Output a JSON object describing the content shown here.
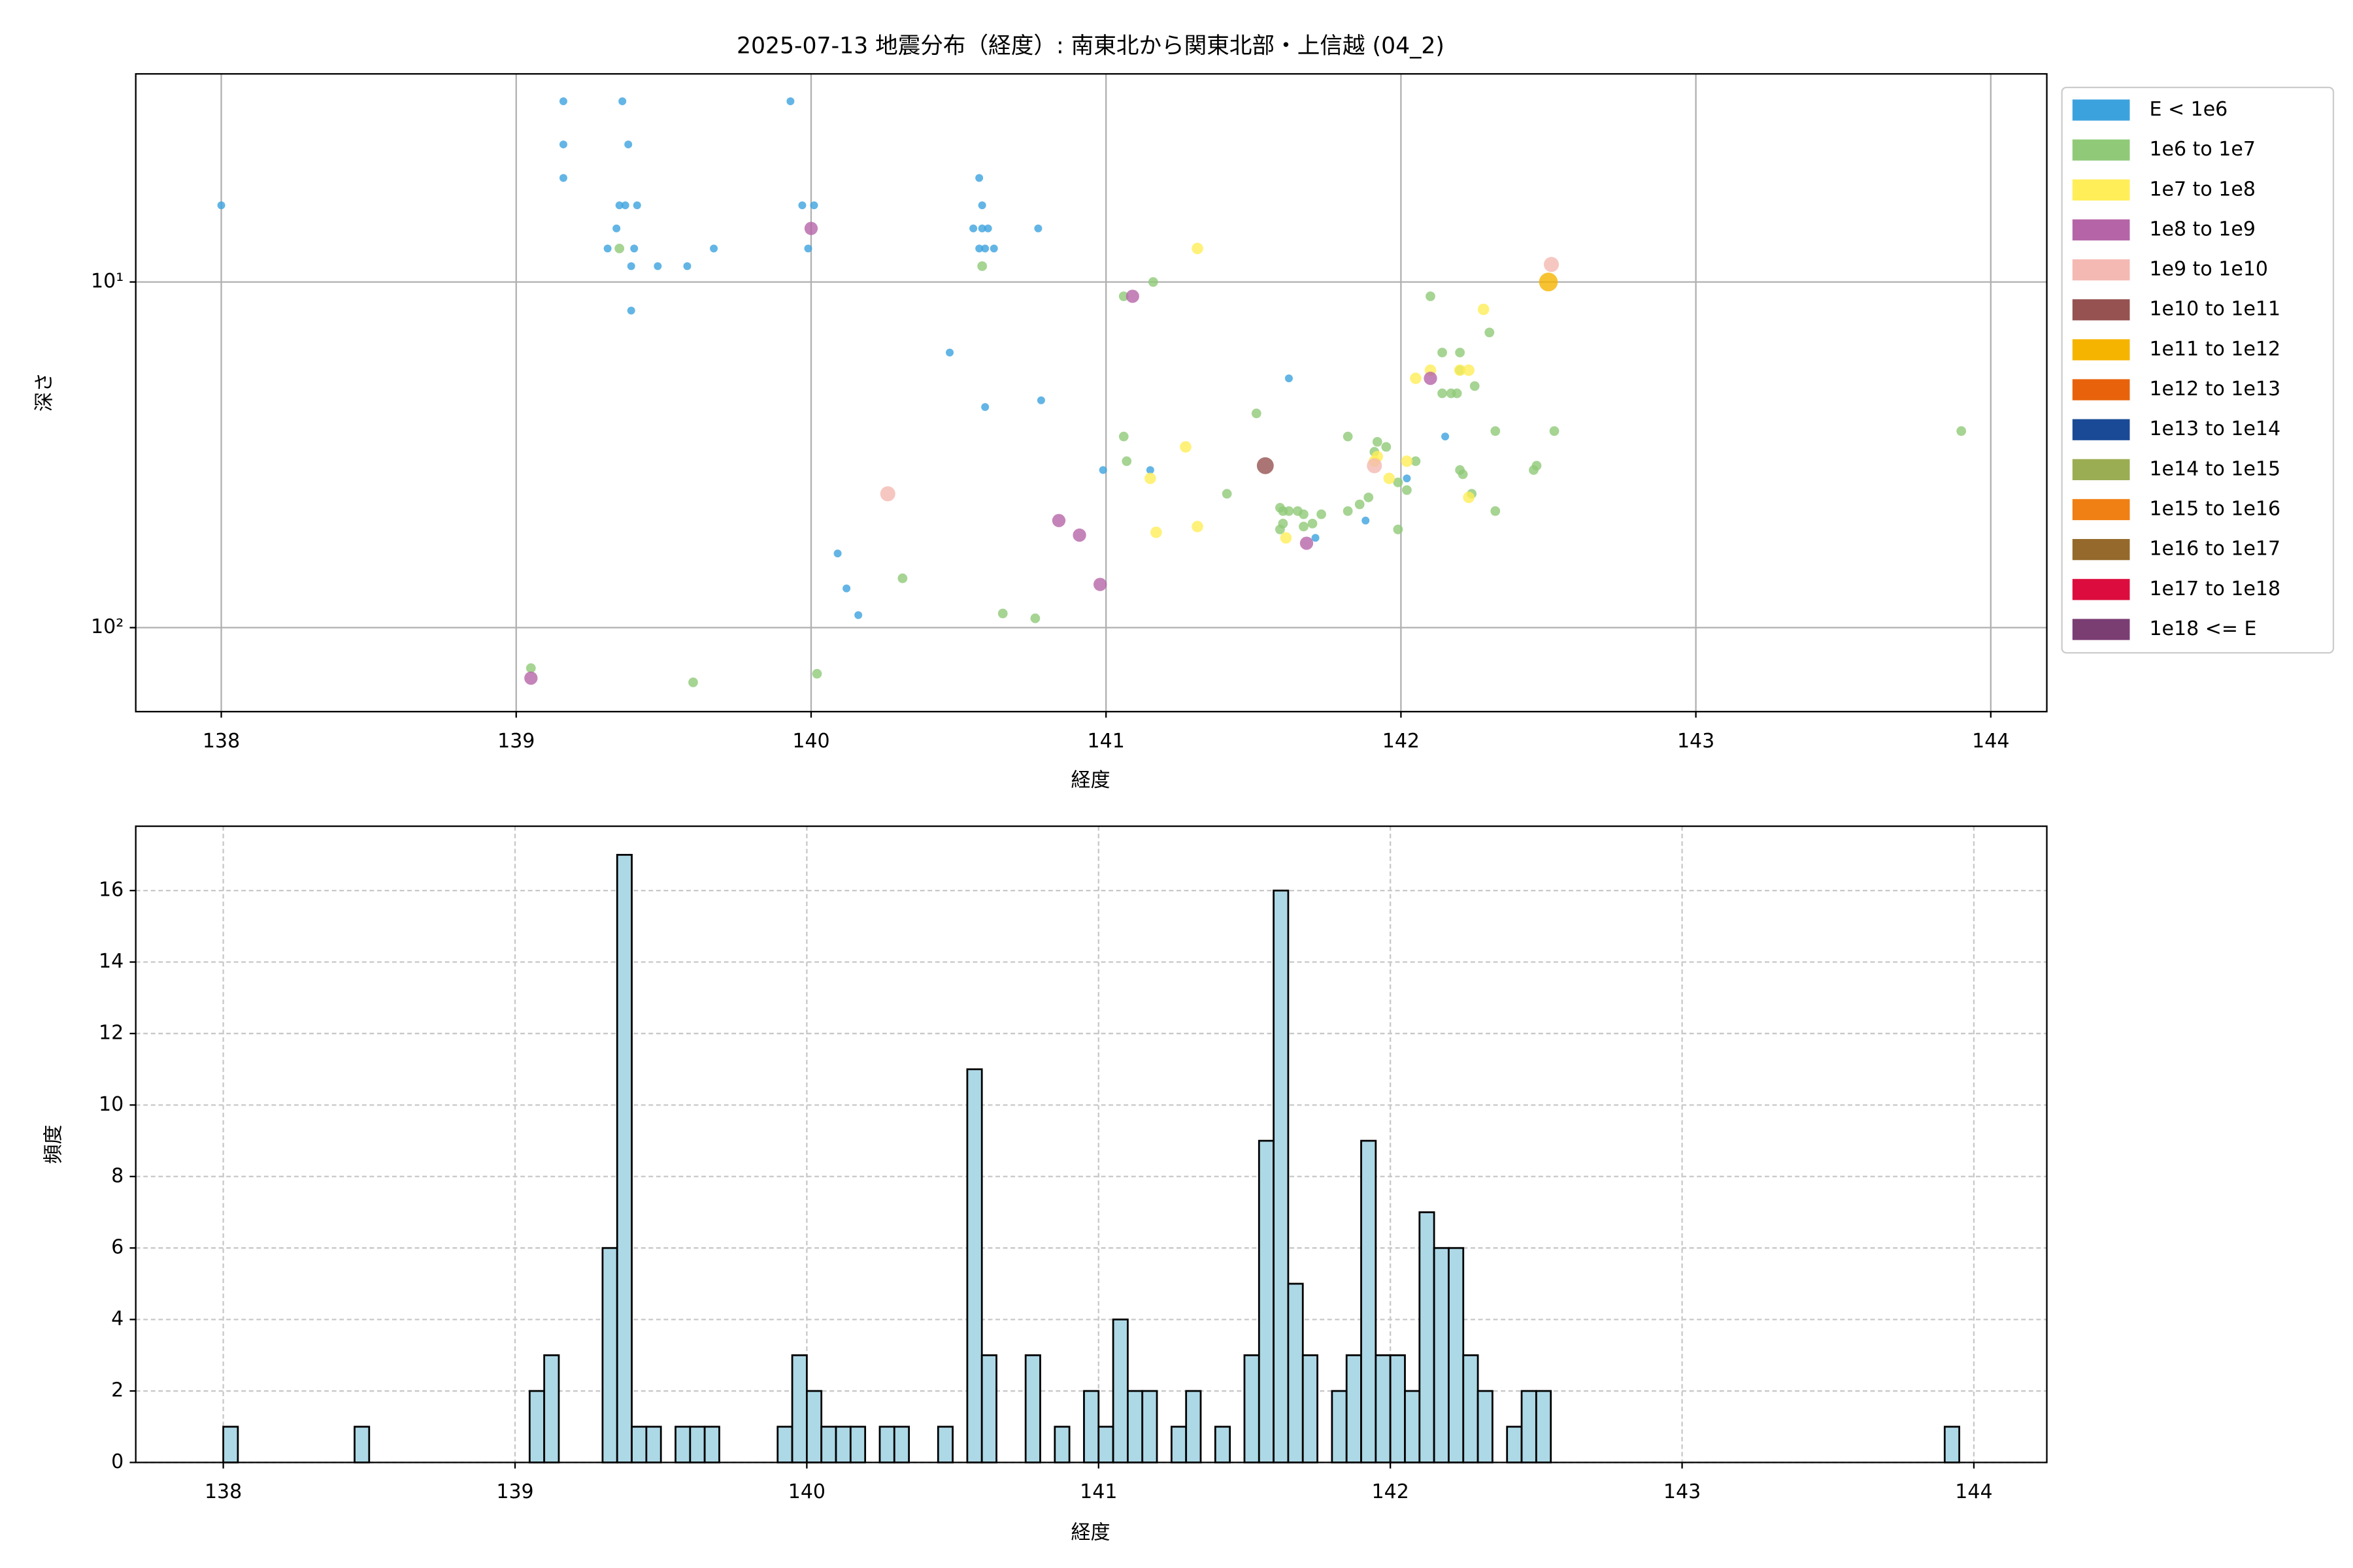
{
  "chart_data": [
    {
      "type": "scatter",
      "title": "2025-07-13 地震分布（経度）: 南東北から関東北部・上信越 (04_2)",
      "x_label": "経度",
      "y_label": "深さ",
      "xlim": [
        137.71,
        144.19
      ],
      "xticks": [
        138,
        139,
        140,
        141,
        142,
        143,
        144
      ],
      "ylim": [
        175,
        2.5
      ],
      "log_y": true,
      "yticks": [
        {
          "value": 10,
          "label": "10¹"
        },
        {
          "value": 100,
          "label": "10²"
        }
      ],
      "grid": true,
      "legend": "outside upper right",
      "series": [
        {
          "name": "E < 1e6",
          "color": "#3ca2de",
          "x": [
            138.0,
            139.16,
            139.16,
            139.16,
            139.36,
            139.38,
            139.35,
            139.37,
            139.41,
            139.34,
            139.31,
            139.4,
            139.39,
            139.48,
            139.58,
            139.67,
            139.39,
            139.93,
            139.97,
            140.01,
            139.99,
            140.57,
            140.58,
            140.55,
            140.58,
            140.6,
            140.57,
            140.59,
            140.62,
            140.77,
            140.47,
            140.59,
            140.78,
            140.09,
            140.12,
            140.16,
            140.99,
            141.15,
            141.62,
            142.15,
            142.02,
            141.88,
            141.71
          ],
          "values": [
            6,
            3,
            4,
            5,
            3,
            4,
            6,
            6,
            6,
            7,
            8,
            8,
            9,
            9,
            9,
            8,
            12.1,
            3,
            6,
            6,
            8,
            5,
            6,
            7,
            7,
            7,
            8,
            8,
            8,
            7,
            16,
            23,
            22,
            61,
            77,
            92,
            35,
            35,
            19,
            28,
            37,
            49,
            55
          ]
        },
        {
          "name": "1e6 to 1e7",
          "color": "#90c978",
          "x": [
            139.05,
            139.6,
            140.02,
            140.31,
            140.65,
            140.76,
            139.35,
            140.58,
            141.06,
            141.16,
            141.06,
            141.07,
            141.41,
            141.51,
            141.59,
            141.6,
            141.62,
            141.65,
            141.67,
            141.6,
            141.59,
            141.67,
            141.73,
            141.7,
            141.82,
            141.82,
            141.86,
            141.89,
            141.91,
            141.92,
            141.95,
            141.99,
            141.99,
            142.02,
            142.05,
            142.1,
            142.14,
            142.14,
            142.17,
            142.19,
            142.2,
            142.2,
            142.21,
            142.2,
            142.25,
            142.24,
            142.3,
            142.32,
            142.32,
            142.45,
            142.46,
            142.52,
            143.9
          ],
          "values": [
            131,
            144,
            136,
            72,
            91,
            94,
            8,
            9,
            11,
            10,
            28,
            33,
            41,
            24,
            45,
            46,
            46,
            46,
            47,
            50,
            52,
            51,
            47,
            50,
            28,
            46,
            44,
            42,
            31,
            29,
            30,
            38,
            52,
            40,
            33,
            11,
            16,
            21,
            21,
            21,
            16,
            35,
            36,
            18,
            20,
            41,
            14,
            27,
            46,
            35,
            34,
            27,
            27
          ]
        },
        {
          "name": "1e7 to 1e8",
          "color": "#ffee58",
          "x": [
            141.31,
            141.15,
            141.27,
            141.17,
            141.31,
            141.61,
            141.91,
            141.92,
            141.96,
            142.02,
            142.05,
            142.1,
            142.2,
            142.23,
            142.28,
            142.23
          ],
          "values": [
            8,
            37,
            30,
            53,
            51,
            55,
            33,
            32,
            37,
            33,
            19,
            18,
            18,
            18,
            12,
            42
          ]
        },
        {
          "name": "1e8 to 1e9",
          "color": "#b565a7",
          "x": [
            139.05,
            140.0,
            141.09,
            140.84,
            140.91,
            140.98,
            141.68,
            142.1
          ],
          "values": [
            140,
            7,
            11,
            49,
            54,
            75,
            57,
            19
          ]
        },
        {
          "name": "1e9 to 1e10",
          "color": "#f4b9b2",
          "x": [
            140.26,
            141.91,
            142.51
          ],
          "values": [
            41,
            34,
            8.9
          ]
        },
        {
          "name": "1e10 to 1e11",
          "color": "#955251",
          "x": [
            141.54
          ],
          "values": [
            34
          ]
        },
        {
          "name": "1e11 to 1e12",
          "color": "#f5b400",
          "x": [
            142.5
          ],
          "values": [
            10
          ]
        },
        {
          "name": "1e12 to 1e13",
          "color": "#e8620c",
          "x": [],
          "values": []
        },
        {
          "name": "1e13 to 1e14",
          "color": "#1a4a96",
          "x": [],
          "values": []
        },
        {
          "name": "1e14 to 1e15",
          "color": "#9aad52",
          "x": [],
          "values": []
        },
        {
          "name": "1e15 to 1e16",
          "color": "#f07f14",
          "x": [],
          "values": []
        },
        {
          "name": "1e16 to 1e17",
          "color": "#94692b",
          "x": [],
          "values": []
        },
        {
          "name": "1e17 to 1e18",
          "color": "#dc0d3e",
          "x": [],
          "values": []
        },
        {
          "name": "1e18 <= E",
          "color": "#7a3e73",
          "x": [],
          "values": []
        }
      ]
    },
    {
      "type": "histogram",
      "x_label": "経度",
      "y_label": "頻度",
      "xlim": [
        137.7,
        144.25
      ],
      "xticks": [
        138,
        139,
        140,
        141,
        142,
        143,
        144
      ],
      "ylim": [
        0,
        17.8
      ],
      "yticks": [
        0,
        2,
        4,
        6,
        8,
        10,
        12,
        14,
        16
      ],
      "grid": true,
      "color": "#add8e6",
      "edge_color": "#000000",
      "bins": [
        138,
        138.05,
        138.1,
        138.15,
        138.2,
        138.25,
        138.3,
        138.35,
        138.4,
        138.45,
        138.5,
        138.55,
        138.6,
        138.65,
        138.7,
        138.75,
        138.8,
        138.85,
        138.9,
        138.95,
        139,
        139.05,
        139.1,
        139.15,
        139.2,
        139.25,
        139.3,
        139.35,
        139.4,
        139.45,
        139.5,
        139.55,
        139.6,
        139.65,
        139.7,
        139.75,
        139.8,
        139.85,
        139.9,
        139.95,
        140,
        140.05,
        140.1,
        140.15,
        140.2,
        140.25,
        140.3,
        140.35,
        140.4,
        140.45,
        140.5,
        140.55,
        140.6,
        140.65,
        140.7,
        140.75,
        140.8,
        140.85,
        140.9,
        140.95,
        141,
        141.05,
        141.1,
        141.15,
        141.2,
        141.25,
        141.3,
        141.35,
        141.4,
        141.45,
        141.5,
        141.55,
        141.6,
        141.65,
        141.7,
        141.75,
        141.8,
        141.85,
        141.9,
        141.95,
        142,
        142.05,
        142.1,
        142.15,
        142.2,
        142.25,
        142.3,
        142.35,
        142.4,
        142.45,
        142.5,
        142.55,
        142.6,
        142.65,
        142.7,
        142.75,
        142.8,
        142.85,
        142.9,
        142.95,
        143,
        143.05,
        143.1,
        143.15,
        143.2,
        143.25,
        143.3,
        143.35,
        143.4,
        143.45,
        143.5,
        143.55,
        143.6,
        143.65,
        143.7,
        143.75,
        143.8,
        143.85,
        143.9,
        143.95
      ],
      "values": [
        1,
        0,
        0,
        0,
        0,
        0,
        0,
        0,
        0,
        1,
        0,
        0,
        0,
        0,
        0,
        0,
        0,
        0,
        0,
        0,
        0,
        2,
        3,
        0,
        0,
        0,
        6,
        17,
        1,
        1,
        0,
        1,
        1,
        1,
        0,
        0,
        0,
        0,
        1,
        3,
        2,
        1,
        1,
        1,
        0,
        1,
        1,
        0,
        0,
        1,
        0,
        11,
        3,
        0,
        0,
        3,
        0,
        1,
        0,
        2,
        1,
        4,
        2,
        2,
        0,
        1,
        2,
        0,
        1,
        0,
        3,
        9,
        16,
        5,
        3,
        0,
        2,
        3,
        9,
        3,
        3,
        2,
        7,
        6,
        6,
        3,
        2,
        0,
        1,
        2,
        2,
        0,
        0,
        0,
        0,
        0,
        0,
        0,
        0,
        0,
        0,
        0,
        0,
        0,
        0,
        0,
        0,
        0,
        0,
        0,
        0,
        0,
        0,
        0,
        0,
        0,
        0,
        0,
        1
      ]
    }
  ]
}
